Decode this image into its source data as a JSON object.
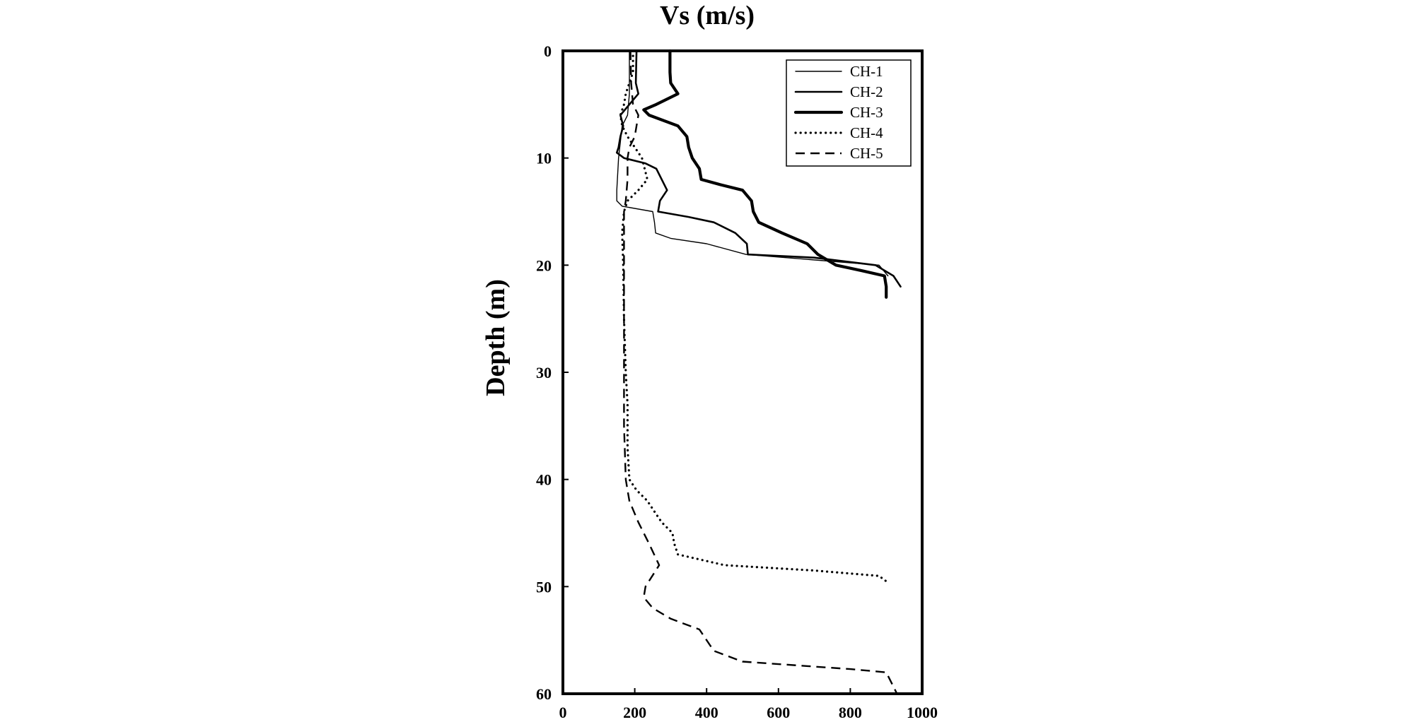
{
  "chart_data": {
    "type": "line",
    "title": "Vs (m/s)",
    "xlabel": "Vs (m/s)",
    "ylabel": "Depth (m)",
    "xlim": [
      0,
      1000
    ],
    "ylim": [
      0,
      60
    ],
    "y_inverted": true,
    "x_axis_position": "top-title",
    "grid": false,
    "legend": "top-right",
    "x_ticks": [
      "0",
      "200",
      "400",
      "600",
      "800",
      "1000"
    ],
    "y_ticks": [
      "0",
      "10",
      "20",
      "30",
      "40",
      "50",
      "60"
    ],
    "series": [
      {
        "name": "CH-1",
        "style": "thin-solid",
        "points": [
          [
            185,
            0
          ],
          [
            185,
            4
          ],
          [
            180,
            6
          ],
          [
            165,
            7
          ],
          [
            155,
            10
          ],
          [
            150,
            13
          ],
          [
            150,
            14
          ],
          [
            165,
            14.5
          ],
          [
            250,
            15
          ],
          [
            255,
            16
          ],
          [
            258,
            17
          ],
          [
            300,
            17.5
          ],
          [
            400,
            18
          ],
          [
            510,
            19
          ],
          [
            880,
            20
          ],
          [
            905,
            21
          ]
        ]
      },
      {
        "name": "CH-2",
        "style": "solid",
        "points": [
          [
            205,
            0
          ],
          [
            203,
            3
          ],
          [
            210,
            4
          ],
          [
            185,
            5
          ],
          [
            160,
            6
          ],
          [
            168,
            7
          ],
          [
            160,
            8
          ],
          [
            155,
            9
          ],
          [
            150,
            9.5
          ],
          [
            170,
            10
          ],
          [
            230,
            10.5
          ],
          [
            260,
            11
          ],
          [
            290,
            13
          ],
          [
            270,
            14
          ],
          [
            265,
            15
          ],
          [
            350,
            15.5
          ],
          [
            420,
            16
          ],
          [
            480,
            17
          ],
          [
            512,
            18
          ],
          [
            515,
            19
          ],
          [
            700,
            19.3
          ],
          [
            870,
            20
          ],
          [
            920,
            21
          ],
          [
            940,
            22
          ]
        ]
      },
      {
        "name": "CH-3",
        "style": "thick-solid",
        "points": [
          [
            298,
            0
          ],
          [
            298,
            2
          ],
          [
            300,
            3
          ],
          [
            320,
            4
          ],
          [
            260,
            5
          ],
          [
            225,
            5.5
          ],
          [
            240,
            6
          ],
          [
            320,
            7
          ],
          [
            345,
            8
          ],
          [
            350,
            9
          ],
          [
            360,
            10
          ],
          [
            380,
            11
          ],
          [
            385,
            12
          ],
          [
            440,
            12.5
          ],
          [
            500,
            13
          ],
          [
            525,
            14
          ],
          [
            530,
            15
          ],
          [
            545,
            16
          ],
          [
            610,
            17
          ],
          [
            680,
            18
          ],
          [
            710,
            19
          ],
          [
            760,
            20
          ],
          [
            830,
            20.5
          ],
          [
            895,
            21
          ],
          [
            900,
            22
          ],
          [
            900,
            23
          ]
        ]
      },
      {
        "name": "CH-4",
        "style": "dotted",
        "points": [
          [
            195,
            0
          ],
          [
            195,
            2
          ],
          [
            185,
            3
          ],
          [
            175,
            4
          ],
          [
            170,
            5
          ],
          [
            160,
            6
          ],
          [
            165,
            7
          ],
          [
            180,
            8
          ],
          [
            200,
            9
          ],
          [
            220,
            10
          ],
          [
            235,
            12
          ],
          [
            210,
            13
          ],
          [
            180,
            14
          ],
          [
            170,
            15
          ],
          [
            165,
            17
          ],
          [
            168,
            20
          ],
          [
            170,
            25
          ],
          [
            175,
            30
          ],
          [
            180,
            33
          ],
          [
            180,
            37
          ],
          [
            185,
            40
          ],
          [
            205,
            41
          ],
          [
            235,
            42
          ],
          [
            255,
            43
          ],
          [
            275,
            44
          ],
          [
            305,
            45
          ],
          [
            310,
            46
          ],
          [
            320,
            47
          ],
          [
            450,
            48
          ],
          [
            700,
            48.5
          ],
          [
            880,
            49
          ],
          [
            900,
            49.5
          ]
        ]
      },
      {
        "name": "CH-5",
        "style": "dashed",
        "points": [
          [
            188,
            0
          ],
          [
            190,
            3
          ],
          [
            195,
            5
          ],
          [
            210,
            6
          ],
          [
            205,
            7
          ],
          [
            200,
            8
          ],
          [
            185,
            9
          ],
          [
            180,
            10
          ],
          [
            180,
            12
          ],
          [
            175,
            14
          ],
          [
            170,
            15
          ],
          [
            170,
            17
          ],
          [
            170,
            20
          ],
          [
            170,
            25
          ],
          [
            170,
            30
          ],
          [
            170,
            35
          ],
          [
            175,
            40
          ],
          [
            180,
            41
          ],
          [
            185,
            42
          ],
          [
            210,
            44
          ],
          [
            240,
            46
          ],
          [
            268,
            48
          ],
          [
            230,
            50
          ],
          [
            225,
            51
          ],
          [
            250,
            52
          ],
          [
            300,
            53
          ],
          [
            380,
            54
          ],
          [
            420,
            56
          ],
          [
            500,
            57
          ],
          [
            800,
            57.7
          ],
          [
            900,
            58
          ],
          [
            915,
            59
          ],
          [
            930,
            60
          ]
        ]
      }
    ]
  }
}
